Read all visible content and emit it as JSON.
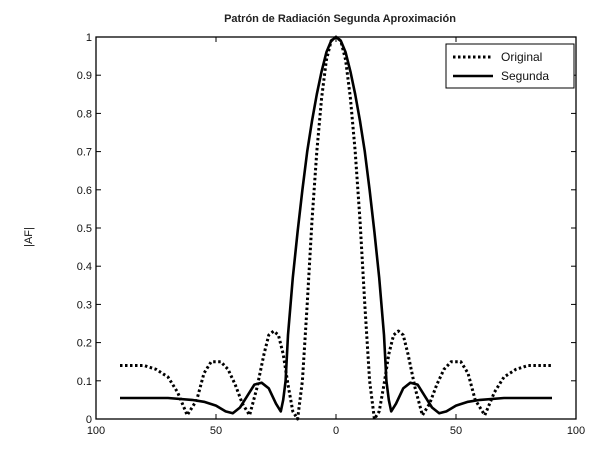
{
  "chart_data": {
    "type": "line",
    "title": "Patrón de Radiación Segunda Aproximación",
    "xlabel": "",
    "ylabel": "|AF|",
    "xlim": [
      -100,
      100
    ],
    "ylim": [
      0,
      1
    ],
    "x_ticks": [
      -100,
      -50,
      0,
      50,
      100
    ],
    "x_tick_labels": [
      "100",
      "50",
      "0",
      "50",
      "100"
    ],
    "y_ticks": [
      0,
      0.1,
      0.2,
      0.3,
      0.4,
      0.5,
      0.6,
      0.7,
      0.8,
      0.9,
      1
    ],
    "y_tick_labels": [
      "0",
      "0.1",
      "0.2",
      "0.3",
      "0.4",
      "0.5",
      "0.6",
      "0.7",
      "0.8",
      "0.9",
      "1"
    ],
    "grid": false,
    "legend_position": "top-right",
    "legend": [
      "Original",
      "Segunda"
    ],
    "series": [
      {
        "name": "Original",
        "style": "dotted",
        "color": "#000000",
        "x": [
          -90,
          -85,
          -80,
          -75,
          -70,
          -66,
          -62,
          -58,
          -55,
          -52,
          -48,
          -45,
          -42,
          -39,
          -36,
          -33,
          -30,
          -28,
          -26,
          -24,
          -22,
          -20,
          -18,
          -16,
          -14,
          -12,
          -10,
          -8,
          -6,
          -4,
          -2,
          0,
          2,
          4,
          6,
          8,
          10,
          12,
          14,
          16,
          18,
          20,
          22,
          24,
          26,
          28,
          30,
          33,
          36,
          39,
          42,
          45,
          48,
          52,
          55,
          58,
          62,
          66,
          70,
          75,
          80,
          85,
          90
        ],
        "y": [
          0.14,
          0.14,
          0.14,
          0.13,
          0.11,
          0.07,
          0.01,
          0.05,
          0.12,
          0.15,
          0.15,
          0.13,
          0.09,
          0.04,
          0.01,
          0.08,
          0.17,
          0.22,
          0.23,
          0.22,
          0.17,
          0.09,
          0.02,
          0.0,
          0.1,
          0.3,
          0.52,
          0.7,
          0.84,
          0.94,
          0.99,
          1.0,
          0.99,
          0.94,
          0.84,
          0.7,
          0.52,
          0.3,
          0.1,
          0.0,
          0.02,
          0.09,
          0.17,
          0.22,
          0.23,
          0.22,
          0.17,
          0.08,
          0.01,
          0.04,
          0.09,
          0.13,
          0.15,
          0.15,
          0.12,
          0.05,
          0.01,
          0.07,
          0.11,
          0.13,
          0.14,
          0.14,
          0.14
        ]
      },
      {
        "name": "Segunda",
        "style": "solid",
        "color": "#000000",
        "x": [
          -90,
          -80,
          -70,
          -60,
          -55,
          -50,
          -46,
          -43,
          -40,
          -37,
          -34,
          -31,
          -28,
          -25,
          -23,
          -22,
          -21,
          -20,
          -18,
          -16,
          -14,
          -12,
          -10,
          -8,
          -6,
          -4,
          -2,
          0,
          2,
          4,
          6,
          8,
          10,
          12,
          14,
          16,
          18,
          20,
          21,
          22,
          23,
          25,
          28,
          31,
          34,
          37,
          40,
          43,
          46,
          50,
          55,
          60,
          70,
          80,
          90
        ],
        "y": [
          0.055,
          0.055,
          0.055,
          0.05,
          0.045,
          0.035,
          0.02,
          0.015,
          0.03,
          0.06,
          0.09,
          0.095,
          0.08,
          0.04,
          0.02,
          0.05,
          0.1,
          0.22,
          0.37,
          0.49,
          0.6,
          0.7,
          0.78,
          0.85,
          0.91,
          0.96,
          0.99,
          1.0,
          0.99,
          0.96,
          0.91,
          0.85,
          0.78,
          0.7,
          0.6,
          0.49,
          0.37,
          0.22,
          0.1,
          0.05,
          0.02,
          0.04,
          0.08,
          0.095,
          0.09,
          0.06,
          0.03,
          0.015,
          0.02,
          0.035,
          0.045,
          0.05,
          0.055,
          0.055,
          0.055
        ]
      }
    ]
  }
}
